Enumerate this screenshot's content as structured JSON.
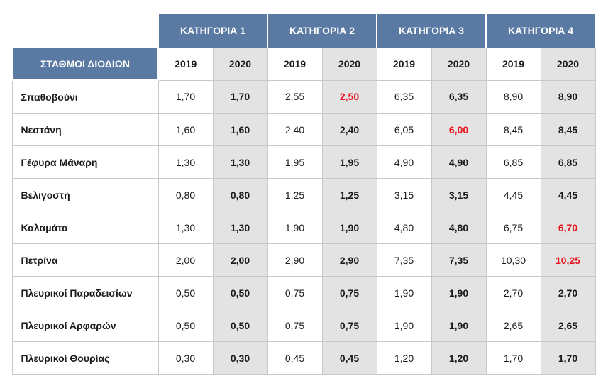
{
  "table": {
    "station_header": "ΣΤΑΘΜΟΙ ΔΙΟΔΙΩΝ",
    "categories": [
      "ΚΑΤΗΓΟΡΙΑ 1",
      "ΚΑΤΗΓΟΡΙΑ 2",
      "ΚΑΤΗΓΟΡΙΑ 3",
      "ΚΑΤΗΓΟΡΙΑ 4"
    ],
    "years": [
      "2019",
      "2020"
    ],
    "colors": {
      "header_bg": "#5b7aa3",
      "header_text": "#ffffff",
      "shaded_bg": "#e3e3e3",
      "changed_value": "#e8141e"
    },
    "rows": [
      {
        "station": "Σπαθοβούνι",
        "values": [
          "1,70",
          "1,70",
          "2,55",
          "2,50",
          "6,35",
          "6,35",
          "8,90",
          "8,90"
        ],
        "changed": [
          false,
          false,
          false,
          true,
          false,
          false,
          false,
          false
        ]
      },
      {
        "station": "Νεστάνη",
        "values": [
          "1,60",
          "1,60",
          "2,40",
          "2,40",
          "6,05",
          "6,00",
          "8,45",
          "8,45"
        ],
        "changed": [
          false,
          false,
          false,
          false,
          false,
          true,
          false,
          false
        ]
      },
      {
        "station": "Γέφυρα Μάναρη",
        "values": [
          "1,30",
          "1,30",
          "1,95",
          "1,95",
          "4,90",
          "4,90",
          "6,85",
          "6,85"
        ],
        "changed": [
          false,
          false,
          false,
          false,
          false,
          false,
          false,
          false
        ]
      },
      {
        "station": "Βελιγοστή",
        "values": [
          "0,80",
          "0,80",
          "1,25",
          "1,25",
          "3,15",
          "3,15",
          "4,45",
          "4,45"
        ],
        "changed": [
          false,
          false,
          false,
          false,
          false,
          false,
          false,
          false
        ]
      },
      {
        "station": "Καλαμάτα",
        "values": [
          "1,30",
          "1,30",
          "1,90",
          "1,90",
          "4,80",
          "4,80",
          "6,75",
          "6,70"
        ],
        "changed": [
          false,
          false,
          false,
          false,
          false,
          false,
          false,
          true
        ]
      },
      {
        "station": "Πετρίνα",
        "values": [
          "2,00",
          "2,00",
          "2,90",
          "2,90",
          "7,35",
          "7,35",
          "10,30",
          "10,25"
        ],
        "changed": [
          false,
          false,
          false,
          false,
          false,
          false,
          false,
          true
        ]
      },
      {
        "station": "Πλευρικοί Παραδεισίων",
        "values": [
          "0,50",
          "0,50",
          "0,75",
          "0,75",
          "1,90",
          "1,90",
          "2,70",
          "2,70"
        ],
        "changed": [
          false,
          false,
          false,
          false,
          false,
          false,
          false,
          false
        ]
      },
      {
        "station": "Πλευρικοί Αρφαρών",
        "values": [
          "0,50",
          "0,50",
          "0,75",
          "0,75",
          "1,90",
          "1,90",
          "2,65",
          "2,65"
        ],
        "changed": [
          false,
          false,
          false,
          false,
          false,
          false,
          false,
          false
        ]
      },
      {
        "station": "Πλευρικοί Θουρίας",
        "values": [
          "0,30",
          "0,30",
          "0,45",
          "0,45",
          "1,20",
          "1,20",
          "1,70",
          "1,70"
        ],
        "changed": [
          false,
          false,
          false,
          false,
          false,
          false,
          false,
          false
        ]
      }
    ]
  }
}
